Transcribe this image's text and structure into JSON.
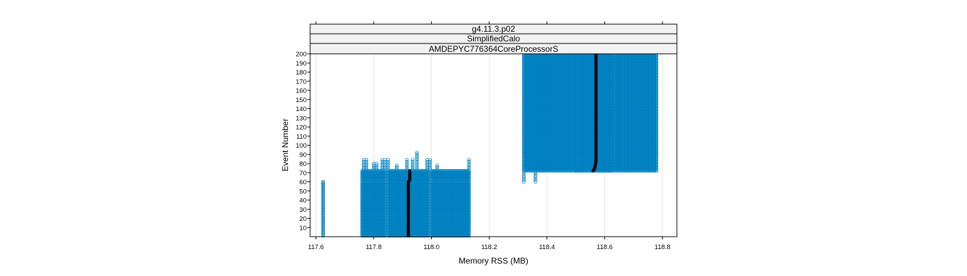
{
  "chart_data": {
    "type": "scatter",
    "strips": [
      "g4.11.3.p02",
      "SimplifiedCalo",
      "AMDEPYC776364CoreProcessorS"
    ],
    "xlabel": "Memory RSS (MB)",
    "ylabel": "Event Number",
    "xlim": [
      117.58,
      118.85
    ],
    "ylim": [
      0,
      200
    ],
    "x_ticks": [
      "117.6",
      "117.8",
      "118.0",
      "118.2",
      "118.4",
      "118.6",
      "118.8"
    ],
    "x_tick_values": [
      117.6,
      117.8,
      118.0,
      118.2,
      118.4,
      118.6,
      118.8
    ],
    "y_ticks": [
      "10",
      "20",
      "30",
      "40",
      "50",
      "60",
      "70",
      "80",
      "90",
      "100",
      "110",
      "120",
      "130",
      "140",
      "150",
      "160",
      "170",
      "180",
      "190",
      "200"
    ],
    "y_tick_values": [
      10,
      20,
      30,
      40,
      50,
      60,
      70,
      80,
      90,
      100,
      110,
      120,
      130,
      140,
      150,
      160,
      170,
      180,
      190,
      200
    ],
    "grid": true,
    "colors": {
      "points": "#0080c0",
      "median": "#000000",
      "strip_bg": "#f2f2f2"
    },
    "groups": [
      {
        "x_from": 117.625,
        "x_to": 117.625,
        "x_step": 0.01,
        "y_from": 1,
        "y_to": 60
      },
      {
        "x_from": 117.76,
        "x_to": 117.84,
        "x_step": 0.005,
        "y_from": 62,
        "y_to": 72
      },
      {
        "x_from": 117.85,
        "x_to": 117.99,
        "x_step": 0.005,
        "y_from": 1,
        "y_to": 72
      },
      {
        "x_from": 118.0,
        "x_to": 118.13,
        "x_step": 0.005,
        "y_from": 62,
        "y_to": 72
      },
      {
        "x_from": 117.76,
        "x_to": 117.84,
        "x_step": 0.005,
        "y_from": 1,
        "y_to": 60
      },
      {
        "x_from": 118.0,
        "x_to": 118.13,
        "x_step": 0.005,
        "y_from": 1,
        "y_to": 60
      },
      {
        "x_from": 118.32,
        "x_to": 118.5,
        "x_step": 0.006,
        "y_from": 72,
        "y_to": 200
      },
      {
        "x_from": 118.5,
        "x_to": 118.63,
        "x_step": 0.004,
        "y_from": 72,
        "y_to": 200
      },
      {
        "x_from": 118.635,
        "x_to": 118.78,
        "x_step": 0.006,
        "y_from": 72,
        "y_to": 200
      }
    ],
    "extra_points": [
      {
        "x": 117.765,
        "y": [
          74,
          76,
          78,
          80,
          82,
          84
        ]
      },
      {
        "x": 117.775,
        "y": [
          74,
          76,
          78,
          80,
          82,
          84
        ]
      },
      {
        "x": 117.8,
        "y": [
          74,
          76,
          78,
          80
        ]
      },
      {
        "x": 117.81,
        "y": [
          74,
          76,
          78,
          80
        ]
      },
      {
        "x": 117.83,
        "y": [
          74,
          76,
          78,
          80,
          82,
          84
        ]
      },
      {
        "x": 117.84,
        "y": [
          74,
          76,
          78,
          80,
          82,
          84
        ]
      },
      {
        "x": 117.85,
        "y": [
          74,
          76,
          78,
          80,
          82,
          84
        ]
      },
      {
        "x": 117.88,
        "y": [
          74,
          76,
          78
        ]
      },
      {
        "x": 117.915,
        "y": [
          74,
          76,
          78,
          80,
          82,
          84
        ]
      },
      {
        "x": 117.935,
        "y": [
          74,
          76,
          78,
          80,
          82,
          84
        ]
      },
      {
        "x": 117.95,
        "y": [
          74,
          76,
          78,
          80,
          82,
          84,
          86,
          88,
          90,
          92
        ]
      },
      {
        "x": 117.985,
        "y": [
          74,
          76,
          78,
          80,
          82,
          84
        ]
      },
      {
        "x": 117.995,
        "y": [
          74,
          76,
          78,
          80,
          82,
          84
        ]
      },
      {
        "x": 118.02,
        "y": [
          74,
          76,
          78
        ]
      },
      {
        "x": 118.13,
        "y": [
          74,
          76,
          78,
          80,
          82,
          84
        ]
      },
      {
        "x": 118.32,
        "y": [
          60,
          62,
          64,
          66,
          68,
          70
        ]
      },
      {
        "x": 118.36,
        "y": [
          60,
          62,
          64,
          66,
          68,
          70
        ]
      }
    ],
    "median": {
      "segments": [
        {
          "x": [
            117.92,
            117.92,
            117.925,
            117.925
          ],
          "y": [
            1,
            60,
            62,
            72
          ]
        },
        {
          "x": [
            118.56,
            118.565,
            118.57,
            118.57
          ],
          "y": [
            72,
            74,
            82,
            200
          ]
        }
      ]
    }
  }
}
